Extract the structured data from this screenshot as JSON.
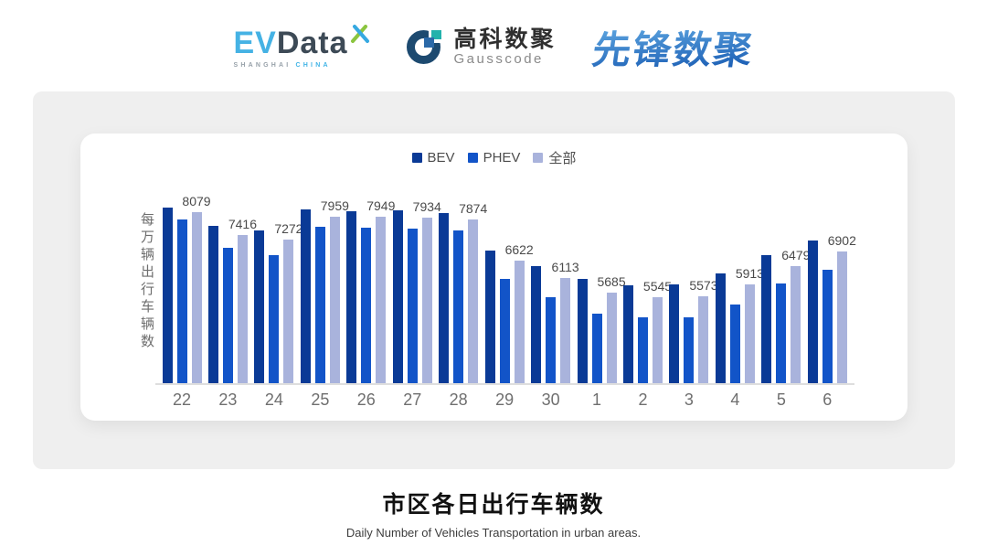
{
  "header": {
    "evdata": {
      "ev": "EV",
      "data": "Data",
      "sub_left": "SHANGHAI",
      "sub_right": "CHINA"
    },
    "gausscode": {
      "cn": "高科数聚",
      "en": "Gausscode"
    },
    "xianfeng": {
      "text": "先锋数聚"
    }
  },
  "footer": {
    "title": "市区各日出行车辆数",
    "subtitle": "Daily Number of Vehicles Transportation in urban areas."
  },
  "chart_data": {
    "type": "bar",
    "title": "市区各日出行车辆数",
    "subtitle": "Daily Number of Vehicles Transportation in urban areas.",
    "ylabel": "每万辆出行车辆数",
    "xlabel": "",
    "categories": [
      "22",
      "23",
      "24",
      "25",
      "26",
      "27",
      "28",
      "29",
      "30",
      "1",
      "2",
      "3",
      "4",
      "5",
      "6"
    ],
    "series": [
      {
        "name": "BEV",
        "color": "#0a3a96",
        "values": [
          8234,
          7688,
          7552,
          8179,
          8125,
          8144,
          8062,
          6943,
          6469,
          6079,
          5896,
          5924,
          6262,
          6807,
          7233
        ],
        "values_estimated": true
      },
      {
        "name": "PHEV",
        "color": "#1254c8",
        "values": [
          7879,
          7015,
          6788,
          7661,
          7634,
          7607,
          7552,
          6079,
          5525,
          5050,
          4925,
          4941,
          5323,
          5943,
          6371
        ],
        "values_estimated": true
      },
      {
        "name": "全部",
        "color": "#a9b3dc",
        "values": [
          8079,
          7416,
          7272,
          7959,
          7949,
          7934,
          7874,
          6622,
          6113,
          5685,
          5545,
          5573,
          5913,
          6479,
          6902
        ],
        "values_estimated": false
      }
    ],
    "value_labels": [
      8079,
      7416,
      7272,
      7959,
      7949,
      7934,
      7874,
      6622,
      6113,
      5685,
      5545,
      5573,
      5913,
      6479,
      6902
    ],
    "labeled_series": "全部",
    "ylim": [
      2950,
      8450
    ],
    "grid": false,
    "legend_position": "top-center"
  }
}
